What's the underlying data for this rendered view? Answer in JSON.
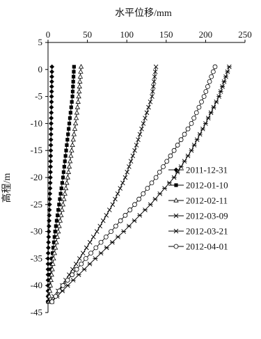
{
  "chart_data": {
    "type": "line",
    "xlabel": "水平位移/mm",
    "ylabel": "高程/m",
    "xlim": [
      0,
      250
    ],
    "ylim": [
      -45,
      5
    ],
    "x_ticks": [
      0,
      50,
      100,
      150,
      200,
      250
    ],
    "y_ticks": [
      5,
      0,
      -5,
      -10,
      -15,
      -20,
      -25,
      -30,
      -35,
      -40,
      -45
    ],
    "x_axis_position": "top",
    "grid": false,
    "legend_position": "right",
    "series": [
      {
        "name": "2011-12-31",
        "marker": "diamond-filled",
        "color": "#000000",
        "points": [
          [
            5,
            0.5
          ],
          [
            4.5,
            -5
          ],
          [
            4,
            -10
          ],
          [
            3.5,
            -15
          ],
          [
            3,
            -20
          ],
          [
            2,
            -25
          ],
          [
            1,
            -30
          ],
          [
            0,
            -35
          ],
          [
            0,
            -43
          ]
        ]
      },
      {
        "name": "2012-01-10",
        "marker": "square-filled",
        "color": "#000000",
        "points": [
          [
            33,
            0.5
          ],
          [
            31,
            -5
          ],
          [
            27,
            -10
          ],
          [
            23,
            -15
          ],
          [
            19,
            -20
          ],
          [
            14,
            -25
          ],
          [
            9,
            -30
          ],
          [
            5,
            -35
          ],
          [
            2,
            -40
          ],
          [
            0,
            -43
          ]
        ]
      },
      {
        "name": "2012-02-11",
        "marker": "triangle-open",
        "color": "#000000",
        "points": [
          [
            42,
            0.5
          ],
          [
            39,
            -5
          ],
          [
            35,
            -10
          ],
          [
            30,
            -15
          ],
          [
            25,
            -20
          ],
          [
            19,
            -25
          ],
          [
            13,
            -30
          ],
          [
            7,
            -35
          ],
          [
            3,
            -40
          ],
          [
            1,
            -43
          ]
        ]
      },
      {
        "name": "2012-03-09",
        "marker": "x",
        "color": "#000000",
        "points": [
          [
            137,
            0.5
          ],
          [
            132,
            -5
          ],
          [
            121,
            -10
          ],
          [
            110,
            -15
          ],
          [
            98,
            -20
          ],
          [
            82,
            -25
          ],
          [
            62,
            -30
          ],
          [
            40,
            -35
          ],
          [
            18,
            -40
          ],
          [
            2,
            -43
          ]
        ]
      },
      {
        "name": "2012-03-21",
        "marker": "asterisk",
        "color": "#000000",
        "points": [
          [
            230,
            0.5
          ],
          [
            217,
            -5
          ],
          [
            200,
            -10
          ],
          [
            182,
            -15
          ],
          [
            160,
            -20
          ],
          [
            130,
            -25
          ],
          [
            96,
            -30
          ],
          [
            60,
            -35
          ],
          [
            25,
            -40
          ],
          [
            5,
            -43
          ]
        ]
      },
      {
        "name": "2012-04-01",
        "marker": "circle-open",
        "color": "#000000",
        "points": [
          [
            212,
            0.5
          ],
          [
            198,
            -5
          ],
          [
            182,
            -10
          ],
          [
            160,
            -15
          ],
          [
            137,
            -20
          ],
          [
            110,
            -25
          ],
          [
            80,
            -30
          ],
          [
            48,
            -35
          ],
          [
            19,
            -40
          ],
          [
            5,
            -43
          ]
        ]
      }
    ]
  }
}
